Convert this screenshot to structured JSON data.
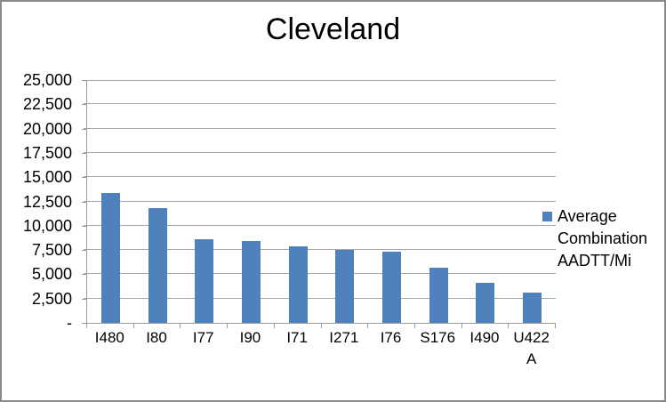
{
  "chart_data": {
    "type": "bar",
    "title": "Cleveland",
    "categories": [
      "I480",
      "I80",
      "I77",
      "I90",
      "I71",
      "I271",
      "I76",
      "S176",
      "I490",
      "U422A"
    ],
    "category_display_lines": [
      [
        "I480"
      ],
      [
        "I80"
      ],
      [
        "I77"
      ],
      [
        "I90"
      ],
      [
        "I71"
      ],
      [
        "I271"
      ],
      [
        "I76"
      ],
      [
        "S176"
      ],
      [
        "I490"
      ],
      [
        "U422",
        "A"
      ]
    ],
    "values": [
      13400,
      11800,
      8600,
      8400,
      7900,
      7500,
      7300,
      5700,
      4100,
      3100
    ],
    "series": [
      {
        "name": "Average Combination AADTT/Mi",
        "values": [
          13400,
          11800,
          8600,
          8400,
          7900,
          7500,
          7300,
          5700,
          4100,
          3100
        ]
      }
    ],
    "xlabel": "",
    "ylabel": "",
    "ylim": [
      0,
      25000
    ],
    "ytick_step": 2500,
    "yticks": [
      {
        "value": 25000,
        "label": "25,000"
      },
      {
        "value": 22500,
        "label": "22,500"
      },
      {
        "value": 20000,
        "label": "20,000"
      },
      {
        "value": 17500,
        "label": "17,500"
      },
      {
        "value": 15000,
        "label": "15,000"
      },
      {
        "value": 12500,
        "label": "12,500"
      },
      {
        "value": 10000,
        "label": "10,000"
      },
      {
        "value": 7500,
        "label": "7,500"
      },
      {
        "value": 5000,
        "label": "5,000"
      },
      {
        "value": 2500,
        "label": "2,500"
      },
      {
        "value": 0,
        "label": "-"
      }
    ],
    "grid": true,
    "legend": {
      "position": "right",
      "entries": [
        "Average Combination AADTT/Mi"
      ],
      "display_lines": [
        "Average",
        "Combination",
        "AADTT/Mi"
      ]
    },
    "colors": {
      "bar": "#4F81BD",
      "gridline": "#A6A6A6",
      "axis": "#9B9B9B",
      "text": "#000000",
      "border": "#8A8A8A"
    }
  }
}
